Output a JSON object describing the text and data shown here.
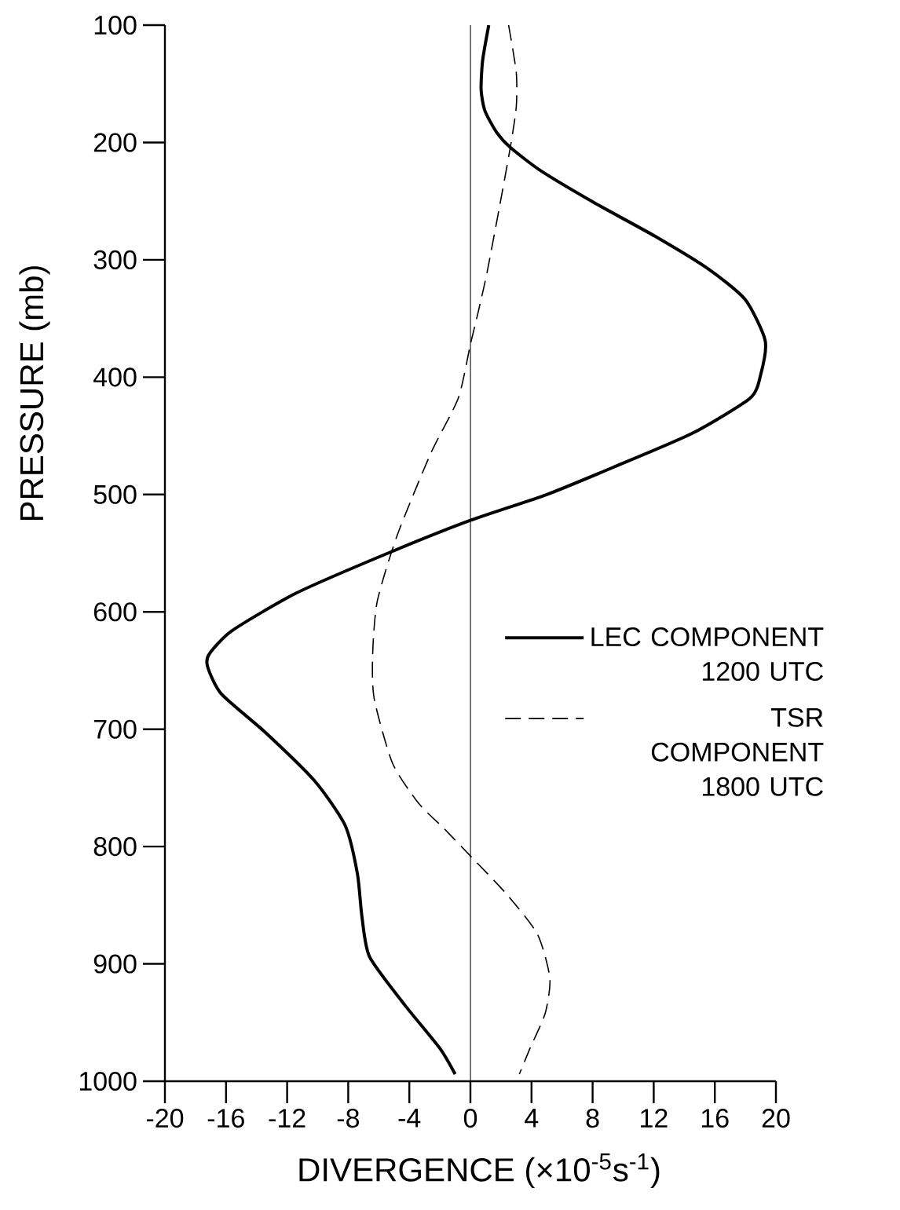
{
  "chart_data": {
    "type": "line",
    "xlabel": "DIVERGENCE (×10$^{-5}$s$^{-1}$)",
    "ylabel": "PRESSURE (mb)",
    "xlim": [
      -20,
      20
    ],
    "ylim": [
      1000,
      100
    ],
    "xticks": [
      -20,
      -16,
      -12,
      -8,
      -4,
      0,
      4,
      8,
      12,
      16,
      20
    ],
    "yticks": [
      100,
      200,
      300,
      400,
      500,
      600,
      700,
      800,
      900,
      1000
    ],
    "ref_lines": [
      {
        "axis": "x",
        "value": 0
      }
    ],
    "legend": "right",
    "grid": false,
    "series": [
      {
        "name": "LEC COMPONENT 1200 UTC",
        "color": "#000000",
        "line_style": "solid",
        "x": [
          1.2,
          0.8,
          0.7,
          0.95,
          1.7,
          2.6,
          4.6,
          8.2,
          12.1,
          15.6,
          18.0,
          19.3,
          19.0,
          18.3,
          14.5,
          9.5,
          5.0,
          0,
          -5.4,
          -11.4,
          -15.6,
          -17.1,
          -17.2,
          -16.3,
          -13.4,
          -10.2,
          -8.2,
          -7.4,
          -7.1,
          -6.6,
          -4.3,
          -2.0,
          -1.0
        ],
        "values": [
          100,
          130,
          155,
          173,
          191,
          204,
          224,
          252,
          280,
          308,
          334,
          369,
          398,
          418,
          448,
          476,
          500,
          522,
          550,
          584,
          616,
          636,
          647,
          670,
          703,
          744,
          782,
          823,
          860,
          894,
          935,
          972,
          994
        ]
      },
      {
        "name": "TSR COMPONENT 1800 UTC",
        "color": "#000000",
        "line_style": "dashed",
        "x": [
          2.5,
          3.0,
          3.0,
          2.6,
          1.9,
          1.1,
          0.5,
          0,
          -0.8,
          -2.6,
          -4.8,
          -6.1,
          -6.4,
          -6.3,
          -5.1,
          -3.4,
          -1.7,
          0,
          2.4,
          4.4,
          5.2,
          4.9,
          3.9,
          3.2
        ],
        "values": [
          100,
          140,
          170,
          205,
          255,
          310,
          345,
          372,
          418,
          465,
          535,
          591,
          636,
          674,
          729,
          763,
          785,
          808,
          841,
          875,
          912,
          942,
          972,
          994
        ]
      }
    ]
  }
}
